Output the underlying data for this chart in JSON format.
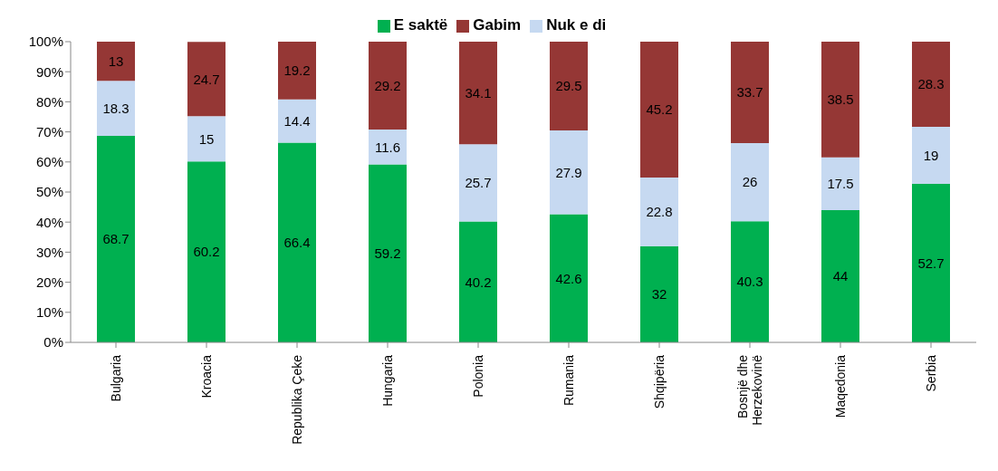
{
  "chart_data": {
    "type": "bar",
    "stacked": true,
    "legend": "top",
    "grid": false,
    "data_labels": true,
    "categories": [
      "Bulgaria",
      "Kroacia",
      "Republika Çeke",
      "Hungaria",
      "Polonia",
      "Rumania",
      "Shqipëria",
      "Bosnjë dhe Herzekovinë",
      "Maqedonia",
      "Serbia"
    ],
    "series": [
      {
        "name": "E saktë",
        "color": "#00b050",
        "values": [
          68.7,
          60.2,
          66.4,
          59.2,
          40.2,
          42.6,
          32,
          40.3,
          44,
          52.7
        ]
      },
      {
        "name": "Nuk e di",
        "color": "#c6d9f1",
        "values": [
          18.3,
          15,
          14.4,
          11.6,
          25.7,
          27.9,
          22.8,
          26,
          17.5,
          19
        ]
      },
      {
        "name": "Gabim",
        "color": "#953735",
        "values": [
          13,
          24.7,
          19.2,
          29.2,
          34.1,
          29.5,
          45.2,
          33.7,
          38.5,
          28.3
        ]
      }
    ],
    "ylim": [
      0,
      100
    ],
    "yticks": [
      {
        "value": 0,
        "label": "0%"
      },
      {
        "value": 10,
        "label": "10%"
      },
      {
        "value": 20,
        "label": "20%"
      },
      {
        "value": 30,
        "label": "30%"
      },
      {
        "value": 40,
        "label": "40%"
      },
      {
        "value": 50,
        "label": "50%"
      },
      {
        "value": 60,
        "label": "60%"
      },
      {
        "value": 70,
        "label": "70%"
      },
      {
        "value": 80,
        "label": "80%"
      },
      {
        "value": 90,
        "label": "90%"
      },
      {
        "value": 100,
        "label": "100%"
      }
    ]
  }
}
